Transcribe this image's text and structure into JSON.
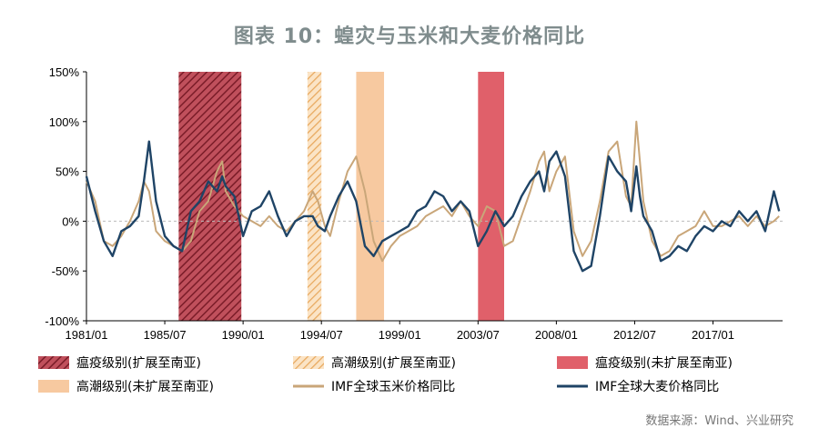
{
  "colors": {
    "title": "#7f8c8d",
    "corn": "#c9a679",
    "wheat": "#1f4466",
    "plague_expanded": "#9a2f3b",
    "peak_expanded": "#e6b377",
    "plague_unexpanded": "#e0606a",
    "peak_unexpanded": "#f7c9a0"
  },
  "chart_data": {
    "type": "line",
    "title": "图表 10：蝗灾与玉米和大麦价格同比",
    "y_unit": "%",
    "ylim": [
      -100,
      150
    ],
    "yticks": [
      -100,
      -50,
      0,
      50,
      100,
      150
    ],
    "ytick_labels": [
      "-100%",
      "-50%",
      "0%",
      "50%",
      "100%",
      "150%"
    ],
    "xlim": [
      1981.0,
      2021.0
    ],
    "xticks": [
      1981.0,
      1985.5,
      1990.0,
      1994.5,
      1999.0,
      2003.5,
      2008.0,
      2012.5,
      2017.0
    ],
    "xtick_labels": [
      "1981/01",
      "1985/07",
      "1990/01",
      "1994/07",
      "1999/01",
      "2003/07",
      "2008/01",
      "2012/07",
      "2017/01"
    ],
    "shaded_regions": [
      {
        "name": "瘟疫级别(扩展至南亚)",
        "start": 1986.3,
        "end": 1989.9,
        "style": "hatch-dark"
      },
      {
        "name": "高潮级别(扩展至南亚)",
        "start": 1993.7,
        "end": 1994.5,
        "style": "hatch-light"
      },
      {
        "name": "瘟疫级别(未扩展至南亚)",
        "start": 2003.5,
        "end": 2005.0,
        "style": "solid-red"
      },
      {
        "name": "高潮级别(未扩展至南亚)",
        "start": 1996.5,
        "end": 1998.1,
        "style": "solid-peach"
      }
    ],
    "series": [
      {
        "name": "IMF全球玉米价格同比",
        "points": [
          [
            1981.0,
            40
          ],
          [
            1981.5,
            20
          ],
          [
            1982.0,
            -20
          ],
          [
            1982.5,
            -25
          ],
          [
            1983.0,
            -15
          ],
          [
            1983.5,
            0
          ],
          [
            1984.0,
            20
          ],
          [
            1984.3,
            40
          ],
          [
            1984.6,
            30
          ],
          [
            1985.0,
            -10
          ],
          [
            1985.5,
            -20
          ],
          [
            1986.0,
            -25
          ],
          [
            1986.5,
            -30
          ],
          [
            1987.0,
            -20
          ],
          [
            1987.5,
            10
          ],
          [
            1988.0,
            20
          ],
          [
            1988.5,
            50
          ],
          [
            1988.8,
            60
          ],
          [
            1989.0,
            30
          ],
          [
            1989.5,
            15
          ],
          [
            1990.0,
            5
          ],
          [
            1990.5,
            0
          ],
          [
            1991.0,
            -5
          ],
          [
            1991.5,
            5
          ],
          [
            1992.0,
            -5
          ],
          [
            1992.5,
            -10
          ],
          [
            1993.0,
            0
          ],
          [
            1993.5,
            10
          ],
          [
            1994.0,
            30
          ],
          [
            1994.3,
            20
          ],
          [
            1994.7,
            -5
          ],
          [
            1995.0,
            -15
          ],
          [
            1995.5,
            20
          ],
          [
            1996.0,
            50
          ],
          [
            1996.5,
            65
          ],
          [
            1997.0,
            30
          ],
          [
            1997.5,
            -20
          ],
          [
            1998.0,
            -40
          ],
          [
            1998.5,
            -25
          ],
          [
            1999.0,
            -15
          ],
          [
            1999.5,
            -10
          ],
          [
            2000.0,
            -5
          ],
          [
            2000.5,
            5
          ],
          [
            2001.0,
            10
          ],
          [
            2001.5,
            15
          ],
          [
            2002.0,
            5
          ],
          [
            2002.5,
            20
          ],
          [
            2003.0,
            5
          ],
          [
            2003.5,
            -5
          ],
          [
            2004.0,
            15
          ],
          [
            2004.5,
            10
          ],
          [
            2005.0,
            -25
          ],
          [
            2005.5,
            -20
          ],
          [
            2006.0,
            5
          ],
          [
            2006.5,
            30
          ],
          [
            2007.0,
            60
          ],
          [
            2007.3,
            70
          ],
          [
            2007.6,
            30
          ],
          [
            2008.0,
            50
          ],
          [
            2008.5,
            65
          ],
          [
            2009.0,
            -10
          ],
          [
            2009.5,
            -35
          ],
          [
            2010.0,
            -20
          ],
          [
            2010.5,
            20
          ],
          [
            2011.0,
            70
          ],
          [
            2011.5,
            80
          ],
          [
            2012.0,
            25
          ],
          [
            2012.3,
            15
          ],
          [
            2012.6,
            100
          ],
          [
            2012.8,
            60
          ],
          [
            2013.0,
            20
          ],
          [
            2013.5,
            -20
          ],
          [
            2014.0,
            -35
          ],
          [
            2014.5,
            -30
          ],
          [
            2015.0,
            -15
          ],
          [
            2015.5,
            -10
          ],
          [
            2016.0,
            -5
          ],
          [
            2016.5,
            10
          ],
          [
            2017.0,
            -5
          ],
          [
            2017.5,
            -5
          ],
          [
            2018.0,
            0
          ],
          [
            2018.5,
            5
          ],
          [
            2019.0,
            -5
          ],
          [
            2019.5,
            5
          ],
          [
            2020.0,
            -5
          ],
          [
            2020.5,
            0
          ],
          [
            2020.8,
            5
          ]
        ]
      },
      {
        "name": "IMF全球大麦价格同比",
        "points": [
          [
            1981.0,
            45
          ],
          [
            1981.5,
            10
          ],
          [
            1982.0,
            -20
          ],
          [
            1982.5,
            -35
          ],
          [
            1983.0,
            -10
          ],
          [
            1983.5,
            -5
          ],
          [
            1984.0,
            5
          ],
          [
            1984.3,
            40
          ],
          [
            1984.6,
            80
          ],
          [
            1985.0,
            20
          ],
          [
            1985.5,
            -15
          ],
          [
            1986.0,
            -25
          ],
          [
            1986.5,
            -30
          ],
          [
            1987.0,
            10
          ],
          [
            1987.5,
            20
          ],
          [
            1988.0,
            40
          ],
          [
            1988.5,
            30
          ],
          [
            1988.8,
            45
          ],
          [
            1989.0,
            35
          ],
          [
            1989.5,
            25
          ],
          [
            1990.0,
            -15
          ],
          [
            1990.5,
            10
          ],
          [
            1991.0,
            15
          ],
          [
            1991.5,
            30
          ],
          [
            1992.0,
            5
          ],
          [
            1992.5,
            -15
          ],
          [
            1993.0,
            0
          ],
          [
            1993.5,
            5
          ],
          [
            1994.0,
            5
          ],
          [
            1994.3,
            -5
          ],
          [
            1994.7,
            -10
          ],
          [
            1995.0,
            5
          ],
          [
            1995.5,
            25
          ],
          [
            1996.0,
            40
          ],
          [
            1996.5,
            20
          ],
          [
            1997.0,
            -25
          ],
          [
            1997.5,
            -35
          ],
          [
            1998.0,
            -20
          ],
          [
            1998.5,
            -15
          ],
          [
            1999.0,
            -10
          ],
          [
            1999.5,
            -5
          ],
          [
            2000.0,
            10
          ],
          [
            2000.5,
            15
          ],
          [
            2001.0,
            30
          ],
          [
            2001.5,
            25
          ],
          [
            2002.0,
            10
          ],
          [
            2002.5,
            20
          ],
          [
            2003.0,
            10
          ],
          [
            2003.5,
            -25
          ],
          [
            2004.0,
            -10
          ],
          [
            2004.5,
            10
          ],
          [
            2005.0,
            -5
          ],
          [
            2005.5,
            5
          ],
          [
            2006.0,
            25
          ],
          [
            2006.5,
            40
          ],
          [
            2007.0,
            50
          ],
          [
            2007.3,
            30
          ],
          [
            2007.6,
            60
          ],
          [
            2008.0,
            70
          ],
          [
            2008.5,
            45
          ],
          [
            2009.0,
            -30
          ],
          [
            2009.5,
            -50
          ],
          [
            2010.0,
            -45
          ],
          [
            2010.5,
            5
          ],
          [
            2011.0,
            65
          ],
          [
            2011.5,
            50
          ],
          [
            2012.0,
            40
          ],
          [
            2012.3,
            10
          ],
          [
            2012.6,
            55
          ],
          [
            2012.8,
            25
          ],
          [
            2013.0,
            5
          ],
          [
            2013.5,
            -10
          ],
          [
            2014.0,
            -40
          ],
          [
            2014.5,
            -35
          ],
          [
            2015.0,
            -25
          ],
          [
            2015.5,
            -30
          ],
          [
            2016.0,
            -15
          ],
          [
            2016.5,
            -5
          ],
          [
            2017.0,
            -10
          ],
          [
            2017.5,
            0
          ],
          [
            2018.0,
            -5
          ],
          [
            2018.5,
            10
          ],
          [
            2019.0,
            0
          ],
          [
            2019.5,
            10
          ],
          [
            2020.0,
            -10
          ],
          [
            2020.5,
            30
          ],
          [
            2020.8,
            10
          ]
        ]
      }
    ],
    "legend": [
      {
        "label": "瘟疫级别(扩展至南亚)",
        "style": "hatch-dark"
      },
      {
        "label": "高潮级别(扩展至南亚)",
        "style": "hatch-light"
      },
      {
        "label": "瘟疫级别(未扩展至南亚)",
        "style": "solid-red"
      },
      {
        "label": "高潮级别(未扩展至南亚)",
        "style": "solid-peach"
      },
      {
        "label": "IMF全球玉米价格同比",
        "style": "line-corn"
      },
      {
        "label": "IMF全球大麦价格同比",
        "style": "line-wheat"
      }
    ],
    "legend_position": "bottom"
  },
  "source": "数据来源：Wind、兴业研究"
}
